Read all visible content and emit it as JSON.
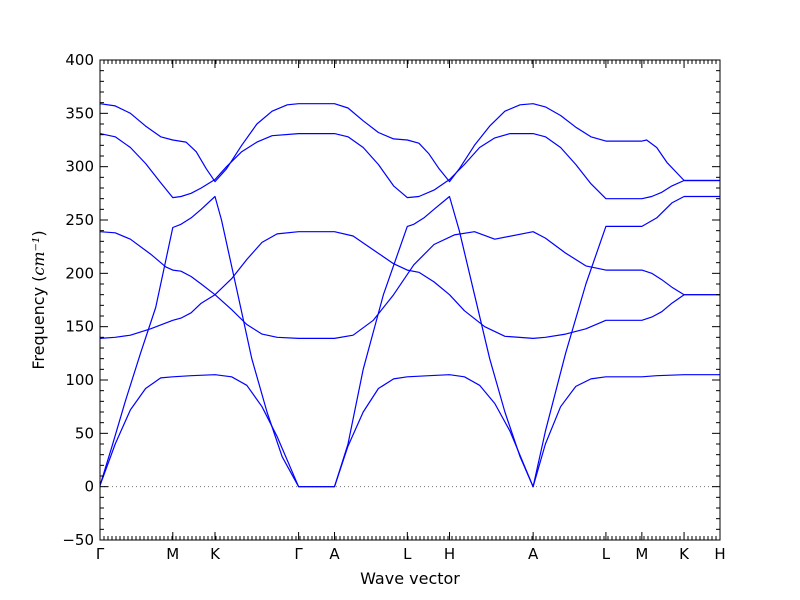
{
  "chart_data": {
    "type": "line",
    "title": "",
    "xlabel": "Wave vector",
    "ylabel": "Frequency",
    "ylabel_unit_math": "cm⁻¹",
    "ylim": [
      -50,
      400
    ],
    "yticks": [
      -50,
      0,
      50,
      100,
      150,
      200,
      250,
      300,
      350,
      400
    ],
    "grid": false,
    "legend": "none",
    "line_color": "#0000ff",
    "zero_line": {
      "value": 0,
      "style": "dotted",
      "color": "#777777"
    },
    "x_ticks": [
      {
        "label": "Γ",
        "x": 0
      },
      {
        "label": "M",
        "x": 0.0719
      },
      {
        "label": "K",
        "x": 0.1136
      },
      {
        "label": "Γ",
        "x": 0.1962
      },
      {
        "label": "A",
        "x": 0.2317
      },
      {
        "label": "L",
        "x": 0.3036
      },
      {
        "label": "H",
        "x": 0.3453
      },
      {
        "label": "A",
        "x": 0.4279
      },
      {
        "label": "L",
        "x": 0.4998
      },
      {
        "label": "M",
        "x": 0.5353
      },
      {
        "label": "K",
        "x": 0.577
      },
      {
        "label": "H",
        "x": 0.6125
      }
    ],
    "x_range": [
      0,
      0.6125
    ],
    "series": [
      {
        "values": [
          [
            0,
            1
          ],
          [
            0.012,
            38
          ],
          [
            0.025,
            80
          ],
          [
            0.04,
            125
          ],
          [
            0.055,
            168
          ],
          [
            0.0719,
            243
          ],
          [
            0.08,
            246
          ],
          [
            0.09,
            252
          ],
          [
            0.1,
            260
          ],
          [
            0.1136,
            272
          ],
          [
            0.12,
            250
          ],
          [
            0.135,
            185
          ],
          [
            0.15,
            120
          ],
          [
            0.165,
            70
          ],
          [
            0.18,
            28
          ],
          [
            0.1962,
            0
          ],
          [
            0.2317,
            0
          ],
          [
            0.245,
            40
          ],
          [
            0.26,
            110
          ],
          [
            0.28,
            180
          ],
          [
            0.3036,
            244
          ],
          [
            0.31,
            246
          ],
          [
            0.32,
            252
          ],
          [
            0.33,
            260
          ],
          [
            0.3453,
            272
          ],
          [
            0.355,
            240
          ],
          [
            0.37,
            180
          ],
          [
            0.385,
            120
          ],
          [
            0.4,
            70
          ],
          [
            0.415,
            28
          ],
          [
            0.4279,
            0
          ],
          [
            0.44,
            52
          ],
          [
            0.46,
            125
          ],
          [
            0.48,
            190
          ],
          [
            0.4998,
            244
          ],
          [
            0.5353,
            244
          ],
          [
            0.55,
            252
          ],
          [
            0.565,
            266
          ],
          [
            0.577,
            272
          ],
          [
            0.6125,
            272
          ]
        ]
      },
      {
        "values": [
          [
            0,
            1
          ],
          [
            0.015,
            40
          ],
          [
            0.03,
            72
          ],
          [
            0.045,
            92
          ],
          [
            0.06,
            102
          ],
          [
            0.0719,
            103
          ],
          [
            0.09,
            104
          ],
          [
            0.1136,
            105
          ],
          [
            0.13,
            103
          ],
          [
            0.145,
            95
          ],
          [
            0.16,
            75
          ],
          [
            0.175,
            47
          ],
          [
            0.1962,
            0
          ],
          [
            0.2317,
            0
          ],
          [
            0.245,
            38
          ],
          [
            0.26,
            70
          ],
          [
            0.275,
            92
          ],
          [
            0.29,
            101
          ],
          [
            0.3036,
            103
          ],
          [
            0.325,
            104
          ],
          [
            0.3453,
            105
          ],
          [
            0.36,
            103
          ],
          [
            0.375,
            95
          ],
          [
            0.39,
            78
          ],
          [
            0.405,
            52
          ],
          [
            0.4279,
            0
          ],
          [
            0.44,
            40
          ],
          [
            0.455,
            75
          ],
          [
            0.47,
            94
          ],
          [
            0.485,
            101
          ],
          [
            0.4998,
            103
          ],
          [
            0.5353,
            103
          ],
          [
            0.55,
            104
          ],
          [
            0.577,
            105
          ],
          [
            0.6125,
            105
          ]
        ]
      },
      {
        "values": [
          [
            0,
            139
          ],
          [
            0.015,
            140
          ],
          [
            0.03,
            142
          ],
          [
            0.05,
            148
          ],
          [
            0.0719,
            156
          ],
          [
            0.08,
            158
          ],
          [
            0.09,
            163
          ],
          [
            0.1,
            172
          ],
          [
            0.1136,
            180
          ],
          [
            0.13,
            195
          ],
          [
            0.145,
            213
          ],
          [
            0.16,
            229
          ],
          [
            0.175,
            237
          ],
          [
            0.1962,
            239
          ],
          [
            0.2317,
            239
          ],
          [
            0.25,
            235
          ],
          [
            0.27,
            222
          ],
          [
            0.29,
            209
          ],
          [
            0.3036,
            203
          ],
          [
            0.315,
            201
          ],
          [
            0.33,
            192
          ],
          [
            0.3453,
            180
          ],
          [
            0.36,
            165
          ],
          [
            0.38,
            150
          ],
          [
            0.4,
            141
          ],
          [
            0.4279,
            139
          ],
          [
            0.44,
            140
          ],
          [
            0.46,
            143
          ],
          [
            0.48,
            148
          ],
          [
            0.4998,
            156
          ],
          [
            0.5353,
            156
          ],
          [
            0.545,
            159
          ],
          [
            0.555,
            164
          ],
          [
            0.565,
            172
          ],
          [
            0.577,
            180
          ],
          [
            0.6125,
            180
          ]
        ]
      },
      {
        "values": [
          [
            0,
            239
          ],
          [
            0.015,
            238
          ],
          [
            0.03,
            232
          ],
          [
            0.05,
            218
          ],
          [
            0.065,
            206
          ],
          [
            0.0719,
            203
          ],
          [
            0.08,
            202
          ],
          [
            0.09,
            197
          ],
          [
            0.1,
            190
          ],
          [
            0.1136,
            180
          ],
          [
            0.13,
            166
          ],
          [
            0.145,
            152
          ],
          [
            0.16,
            143
          ],
          [
            0.175,
            140
          ],
          [
            0.1962,
            139
          ],
          [
            0.2317,
            139
          ],
          [
            0.25,
            142
          ],
          [
            0.27,
            156
          ],
          [
            0.29,
            180
          ],
          [
            0.31,
            208
          ],
          [
            0.33,
            227
          ],
          [
            0.35,
            236
          ],
          [
            0.37,
            239
          ],
          [
            0.39,
            232
          ],
          [
            0.4279,
            239
          ],
          [
            0.44,
            233
          ],
          [
            0.46,
            219
          ],
          [
            0.48,
            207
          ],
          [
            0.4998,
            203
          ],
          [
            0.5353,
            203
          ],
          [
            0.545,
            200
          ],
          [
            0.555,
            194
          ],
          [
            0.565,
            187
          ],
          [
            0.577,
            180
          ],
          [
            0.6125,
            180
          ]
        ]
      },
      {
        "values": [
          [
            0,
            331
          ],
          [
            0.015,
            328
          ],
          [
            0.03,
            318
          ],
          [
            0.045,
            303
          ],
          [
            0.06,
            285
          ],
          [
            0.0719,
            271
          ],
          [
            0.08,
            272
          ],
          [
            0.09,
            275
          ],
          [
            0.1,
            280
          ],
          [
            0.1136,
            288
          ],
          [
            0.125,
            300
          ],
          [
            0.14,
            314
          ],
          [
            0.155,
            323
          ],
          [
            0.17,
            329
          ],
          [
            0.1962,
            331
          ],
          [
            0.2317,
            331
          ],
          [
            0.245,
            328
          ],
          [
            0.26,
            318
          ],
          [
            0.275,
            302
          ],
          [
            0.29,
            282
          ],
          [
            0.3036,
            271
          ],
          [
            0.315,
            272
          ],
          [
            0.33,
            278
          ],
          [
            0.3453,
            288
          ],
          [
            0.36,
            302
          ],
          [
            0.375,
            318
          ],
          [
            0.39,
            327
          ],
          [
            0.405,
            331
          ],
          [
            0.4279,
            331
          ],
          [
            0.44,
            328
          ],
          [
            0.455,
            318
          ],
          [
            0.47,
            302
          ],
          [
            0.485,
            284
          ],
          [
            0.4998,
            270
          ],
          [
            0.5353,
            270
          ],
          [
            0.545,
            272
          ],
          [
            0.555,
            276
          ],
          [
            0.565,
            282
          ],
          [
            0.577,
            287
          ],
          [
            0.6125,
            287
          ]
        ]
      },
      {
        "values": [
          [
            0,
            359
          ],
          [
            0.015,
            357
          ],
          [
            0.03,
            350
          ],
          [
            0.045,
            338
          ],
          [
            0.06,
            328
          ],
          [
            0.0719,
            325
          ],
          [
            0.085,
            323
          ],
          [
            0.095,
            314
          ],
          [
            0.105,
            298
          ],
          [
            0.1136,
            286
          ],
          [
            0.125,
            298
          ],
          [
            0.14,
            320
          ],
          [
            0.155,
            340
          ],
          [
            0.17,
            352
          ],
          [
            0.185,
            358
          ],
          [
            0.1962,
            359
          ],
          [
            0.2317,
            359
          ],
          [
            0.245,
            355
          ],
          [
            0.26,
            343
          ],
          [
            0.275,
            332
          ],
          [
            0.29,
            326
          ],
          [
            0.3036,
            325
          ],
          [
            0.315,
            322
          ],
          [
            0.325,
            312
          ],
          [
            0.335,
            298
          ],
          [
            0.3453,
            286
          ],
          [
            0.355,
            298
          ],
          [
            0.37,
            320
          ],
          [
            0.385,
            338
          ],
          [
            0.4,
            352
          ],
          [
            0.415,
            358
          ],
          [
            0.4279,
            359
          ],
          [
            0.44,
            356
          ],
          [
            0.455,
            348
          ],
          [
            0.47,
            337
          ],
          [
            0.485,
            328
          ],
          [
            0.4998,
            324
          ],
          [
            0.5353,
            324
          ],
          [
            0.54,
            325
          ],
          [
            0.55,
            318
          ],
          [
            0.56,
            304
          ],
          [
            0.577,
            287
          ],
          [
            0.6125,
            287
          ]
        ]
      }
    ]
  }
}
